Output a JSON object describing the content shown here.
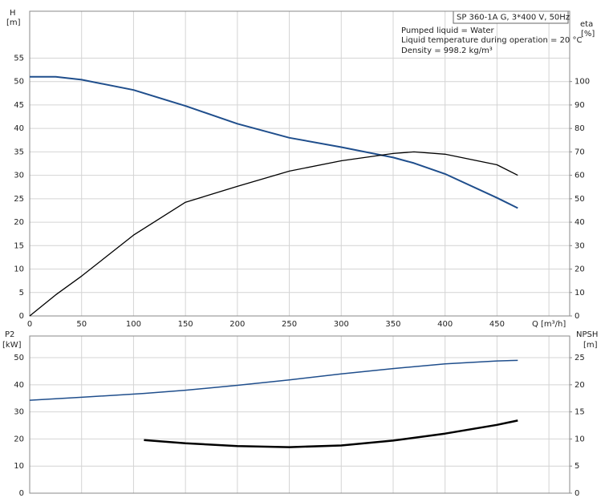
{
  "chart_data": [
    {
      "type": "line",
      "title": "SP 360-1A G, 3*400 V, 50Hz",
      "annotations": [
        "Pumped liquid = Water",
        "Liquid temperature during operation = 20 °C",
        "Density = 998.2 kg/m³"
      ],
      "y_label": "H",
      "y_unit": "[m]",
      "y2_label": "eta",
      "y2_unit": "[%]",
      "xlim": [
        0,
        520
      ],
      "xticks": [
        0,
        50,
        100,
        150,
        200,
        250,
        300,
        350,
        400,
        450,
        {
          "value": 500,
          "label": "Q [m³/h]"
        }
      ],
      "ylim": [
        0,
        65
      ],
      "yticks": [
        0,
        5,
        10,
        15,
        20,
        25,
        30,
        35,
        40,
        45,
        50,
        55
      ],
      "y2lim": [
        0,
        130
      ],
      "y2ticks": [
        0,
        10,
        20,
        30,
        40,
        50,
        60,
        70,
        80,
        90,
        100
      ],
      "grid": true,
      "show_xtick_labels": true,
      "x": [
        0,
        25,
        50,
        100,
        150,
        200,
        250,
        300,
        350,
        370,
        400,
        450,
        470
      ],
      "series": [
        {
          "name": "H",
          "color": "#1f4e8c",
          "width": 2,
          "values": [
            51,
            51,
            50.4,
            48.2,
            44.8,
            41,
            38,
            36,
            33.8,
            32.6,
            30.3,
            25.2,
            23
          ]
        },
        {
          "name": "eta",
          "color": "#000000",
          "width": 1.3,
          "axis": "y2",
          "values": [
            0,
            9,
            17,
            34.5,
            48.5,
            55.3,
            61.8,
            66.2,
            69.3,
            70,
            69,
            64.5,
            60
          ]
        }
      ]
    },
    {
      "type": "line",
      "y_label": "P2",
      "y_unit": "[kW]",
      "y2_label": "NPSH",
      "y2_unit": "[m]",
      "xlim": [
        0,
        520
      ],
      "xticks": [
        0,
        50,
        100,
        150,
        200,
        250,
        300,
        350,
        400,
        450,
        500
      ],
      "ylim": [
        0,
        58
      ],
      "yticks": [
        0,
        10,
        20,
        30,
        40,
        50
      ],
      "y2lim": [
        0,
        29
      ],
      "y2ticks": [
        0,
        5,
        10,
        15,
        20,
        25
      ],
      "grid": true,
      "show_xtick_labels": false,
      "x": [
        0,
        50,
        110,
        150,
        200,
        250,
        300,
        350,
        400,
        450,
        470
      ],
      "series": [
        {
          "name": "P2",
          "color": "#1f4e8c",
          "width": 1.5,
          "values": [
            34.3,
            35.4,
            36.8,
            38,
            39.8,
            41.8,
            44,
            46,
            47.7,
            48.8,
            49
          ]
        },
        {
          "name": "NPSH",
          "color": "#000000",
          "width": 2.5,
          "axis": "y2",
          "values": [
            null,
            null,
            9.8,
            9.2,
            8.7,
            8.5,
            8.8,
            9.7,
            11,
            12.6,
            13.4
          ]
        }
      ]
    }
  ]
}
